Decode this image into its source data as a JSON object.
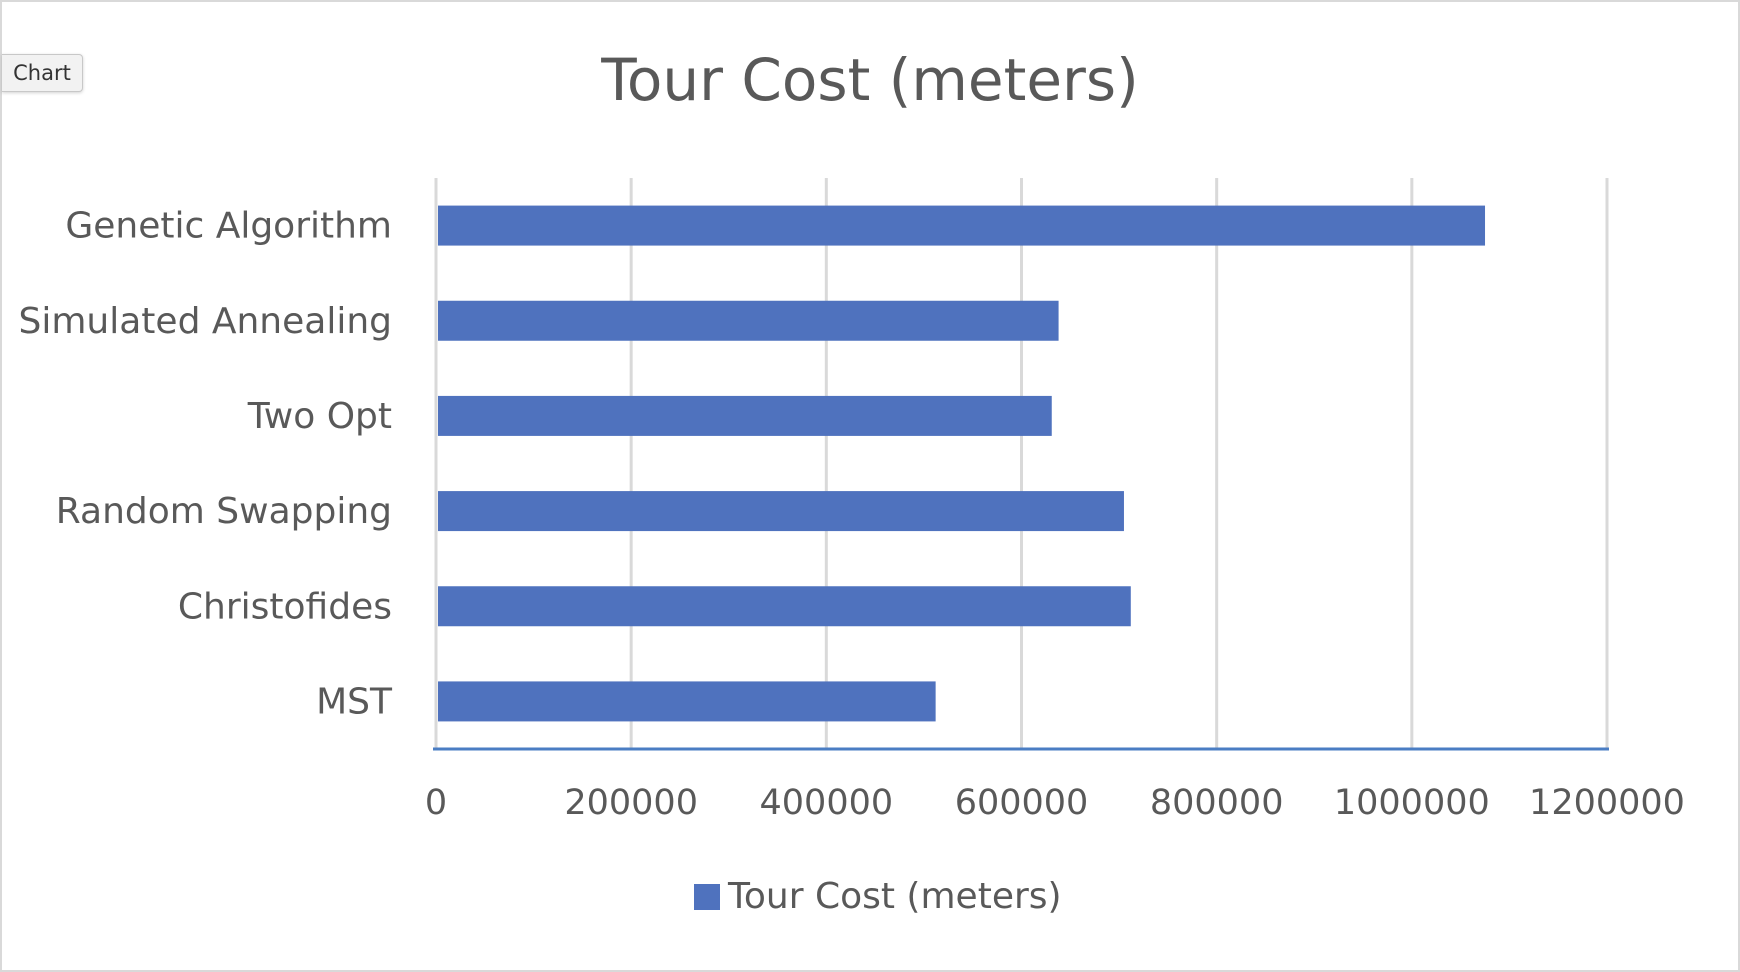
{
  "tab": {
    "label": "Chart"
  },
  "chart_data": {
    "type": "bar",
    "orientation": "horizontal",
    "title": "Tour Cost (meters)",
    "categories": [
      "Genetic Algorithm",
      "Simulated Annealing",
      "Two Opt",
      "Random Swapping",
      "Christofides",
      "MST"
    ],
    "series": [
      {
        "name": "Tour Cost (meters)",
        "values": [
          1075000,
          638000,
          631000,
          705000,
          712000,
          512000
        ],
        "color": "#4f72be"
      }
    ],
    "xlim": [
      0,
      1200000
    ],
    "xticks": [
      0,
      200000,
      400000,
      600000,
      800000,
      1000000,
      1200000
    ],
    "xtick_labels": [
      "0",
      "200000",
      "400000",
      "600000",
      "800000",
      "1000000",
      "1200000"
    ],
    "grid": "vertical",
    "legend_position": "bottom",
    "colors": {
      "bar": "#4f72be",
      "axis": "#4a7dc3",
      "grid": "#d9d9d9",
      "text": "#595959"
    }
  }
}
